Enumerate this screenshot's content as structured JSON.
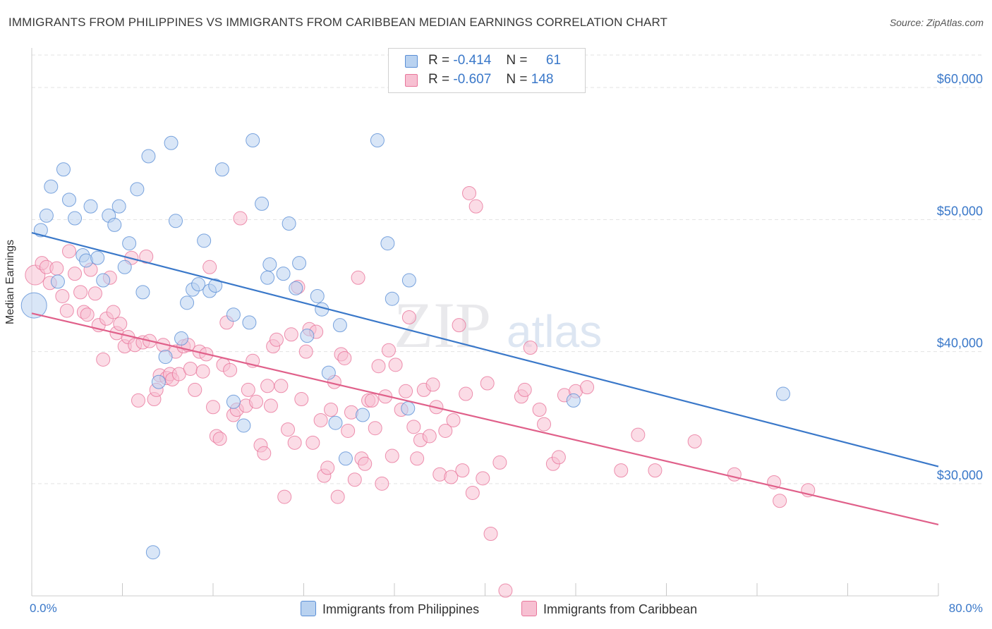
{
  "title": "IMMIGRANTS FROM PHILIPPINES VS IMMIGRANTS FROM CARIBBEAN MEDIAN EARNINGS CORRELATION CHART",
  "source": "Source: ZipAtlas.com",
  "watermark": "ZIPatlas",
  "legend": {
    "rows": [
      {
        "r_label": "R =",
        "r_value": "-0.414",
        "n_label": "N =",
        "n_value": "61"
      },
      {
        "r_label": "R =",
        "r_value": "-0.607",
        "n_label": "N =",
        "n_value": "148"
      }
    ]
  },
  "bottom_legend": [
    "Immigrants from Philippines",
    "Immigrants from Caribbean"
  ],
  "x_tick_labels": {
    "left": "0.0%",
    "right": "80.0%"
  },
  "chart_data": {
    "type": "scatter",
    "title": "IMMIGRANTS FROM PHILIPPINES VS IMMIGRANTS FROM CARIBBEAN MEDIAN EARNINGS CORRELATION CHART",
    "xlabel": "",
    "ylabel": "Median Earnings",
    "xlim": [
      0,
      80
    ],
    "ylim": [
      21500,
      63000
    ],
    "y_ticks": [
      30000,
      40000,
      50000,
      60000
    ],
    "y_tick_labels": [
      "$30,000",
      "$40,000",
      "$50,000",
      "$60,000"
    ],
    "grid": true,
    "legend_position": "top-center",
    "colors": {
      "philippines": "#5b8fd6",
      "caribbean": "#e8769b",
      "philippines_fill": "#b9d2f0",
      "caribbean_fill": "#f7c0d2",
      "axis_text": "#3a78c9"
    },
    "series": [
      {
        "name": "Immigrants from Philippines",
        "color": "#3a78c9",
        "trend": {
          "x": [
            0,
            80
          ],
          "y": [
            49000,
            31300
          ]
        },
        "points": [
          [
            0.2,
            43500
          ],
          [
            0.8,
            49200
          ],
          [
            1.3,
            50300
          ],
          [
            1.7,
            52500
          ],
          [
            2.3,
            45300
          ],
          [
            2.8,
            53800
          ],
          [
            3.3,
            51500
          ],
          [
            3.8,
            50100
          ],
          [
            4.5,
            47300
          ],
          [
            4.8,
            46900
          ],
          [
            5.2,
            51000
          ],
          [
            5.8,
            47100
          ],
          [
            6.3,
            45400
          ],
          [
            6.8,
            50300
          ],
          [
            7.3,
            49600
          ],
          [
            7.7,
            51000
          ],
          [
            8.2,
            46400
          ],
          [
            8.6,
            48200
          ],
          [
            9.3,
            52300
          ],
          [
            9.8,
            44500
          ],
          [
            10.3,
            54800
          ],
          [
            10.7,
            24800
          ],
          [
            11.2,
            37700
          ],
          [
            11.8,
            39600
          ],
          [
            12.3,
            55800
          ],
          [
            12.7,
            49900
          ],
          [
            13.2,
            41000
          ],
          [
            13.7,
            43700
          ],
          [
            14.2,
            44700
          ],
          [
            14.7,
            45100
          ],
          [
            15.2,
            48400
          ],
          [
            15.7,
            44600
          ],
          [
            16.2,
            45000
          ],
          [
            16.8,
            53800
          ],
          [
            17.8,
            42800
          ],
          [
            17.8,
            36200
          ],
          [
            18.7,
            34400
          ],
          [
            19.2,
            42200
          ],
          [
            19.5,
            56000
          ],
          [
            20.3,
            51200
          ],
          [
            20.8,
            45600
          ],
          [
            21.0,
            46600
          ],
          [
            22.2,
            45900
          ],
          [
            22.7,
            49700
          ],
          [
            23.3,
            44800
          ],
          [
            23.6,
            46700
          ],
          [
            24.3,
            41200
          ],
          [
            25.2,
            44200
          ],
          [
            25.6,
            43200
          ],
          [
            26.2,
            38400
          ],
          [
            26.8,
            34600
          ],
          [
            27.2,
            42000
          ],
          [
            27.7,
            31900
          ],
          [
            29.2,
            35200
          ],
          [
            30.5,
            56000
          ],
          [
            31.4,
            48200
          ],
          [
            31.8,
            44000
          ],
          [
            33.3,
            45400
          ],
          [
            33.2,
            35700
          ],
          [
            47.8,
            36300
          ],
          [
            66.3,
            36800
          ]
        ]
      },
      {
        "name": "Immigrants from Caribbean",
        "color": "#e0608a",
        "trend": {
          "x": [
            0,
            80
          ],
          "y": [
            42900,
            26900
          ]
        },
        "points": [
          [
            0.3,
            45800
          ],
          [
            0.9,
            46700
          ],
          [
            1.3,
            46400
          ],
          [
            1.6,
            45200
          ],
          [
            2.2,
            46300
          ],
          [
            2.7,
            44200
          ],
          [
            3.1,
            43100
          ],
          [
            3.3,
            47600
          ],
          [
            3.8,
            45900
          ],
          [
            4.3,
            44500
          ],
          [
            4.6,
            43000
          ],
          [
            4.9,
            42800
          ],
          [
            5.2,
            46200
          ],
          [
            5.6,
            44400
          ],
          [
            5.9,
            42000
          ],
          [
            6.3,
            39400
          ],
          [
            6.6,
            42500
          ],
          [
            6.9,
            45600
          ],
          [
            7.2,
            43000
          ],
          [
            7.5,
            41400
          ],
          [
            7.8,
            42100
          ],
          [
            8.2,
            40400
          ],
          [
            8.5,
            41100
          ],
          [
            8.8,
            47100
          ],
          [
            9.1,
            40500
          ],
          [
            9.4,
            36300
          ],
          [
            9.8,
            40700
          ],
          [
            10.1,
            47200
          ],
          [
            10.4,
            40800
          ],
          [
            10.8,
            36400
          ],
          [
            11.0,
            37100
          ],
          [
            11.3,
            38200
          ],
          [
            11.6,
            40500
          ],
          [
            11.9,
            38000
          ],
          [
            12.2,
            38300
          ],
          [
            12.4,
            37900
          ],
          [
            12.7,
            40000
          ],
          [
            13.0,
            38300
          ],
          [
            13.4,
            40400
          ],
          [
            13.8,
            40500
          ],
          [
            14.0,
            38700
          ],
          [
            14.4,
            37100
          ],
          [
            14.8,
            40000
          ],
          [
            15.1,
            38500
          ],
          [
            15.4,
            39800
          ],
          [
            15.7,
            46400
          ],
          [
            16.0,
            35800
          ],
          [
            16.3,
            33600
          ],
          [
            16.6,
            33400
          ],
          [
            16.9,
            39000
          ],
          [
            17.2,
            42200
          ],
          [
            17.5,
            38600
          ],
          [
            17.8,
            35200
          ],
          [
            18.1,
            35600
          ],
          [
            18.4,
            50100
          ],
          [
            18.9,
            35900
          ],
          [
            19.1,
            37100
          ],
          [
            19.5,
            39300
          ],
          [
            19.8,
            36200
          ],
          [
            20.2,
            32900
          ],
          [
            20.5,
            32300
          ],
          [
            20.8,
            37400
          ],
          [
            21.1,
            35900
          ],
          [
            21.3,
            40400
          ],
          [
            21.6,
            40900
          ],
          [
            22.0,
            37400
          ],
          [
            22.3,
            29000
          ],
          [
            22.6,
            34100
          ],
          [
            22.9,
            41300
          ],
          [
            23.2,
            33100
          ],
          [
            23.5,
            44900
          ],
          [
            23.8,
            36400
          ],
          [
            24.2,
            40000
          ],
          [
            24.5,
            41700
          ],
          [
            24.8,
            33100
          ],
          [
            25.1,
            41500
          ],
          [
            25.5,
            34800
          ],
          [
            25.8,
            30600
          ],
          [
            26.1,
            31200
          ],
          [
            26.4,
            35600
          ],
          [
            26.7,
            37700
          ],
          [
            27.0,
            29000
          ],
          [
            27.3,
            39800
          ],
          [
            27.6,
            39500
          ],
          [
            27.9,
            34000
          ],
          [
            28.2,
            35400
          ],
          [
            28.5,
            30300
          ],
          [
            28.8,
            45600
          ],
          [
            29.1,
            31900
          ],
          [
            29.4,
            31500
          ],
          [
            29.7,
            36300
          ],
          [
            30.0,
            36300
          ],
          [
            30.3,
            34200
          ],
          [
            30.6,
            38900
          ],
          [
            30.9,
            30000
          ],
          [
            31.2,
            36600
          ],
          [
            31.5,
            40100
          ],
          [
            31.8,
            32100
          ],
          [
            32.1,
            39000
          ],
          [
            32.6,
            35600
          ],
          [
            33.0,
            37000
          ],
          [
            33.3,
            42600
          ],
          [
            33.7,
            34300
          ],
          [
            34.0,
            31900
          ],
          [
            34.3,
            33300
          ],
          [
            34.6,
            37100
          ],
          [
            35.1,
            33600
          ],
          [
            35.4,
            37500
          ],
          [
            35.7,
            35800
          ],
          [
            36.0,
            30700
          ],
          [
            36.5,
            34000
          ],
          [
            37.0,
            30500
          ],
          [
            37.2,
            34800
          ],
          [
            37.7,
            42000
          ],
          [
            38.0,
            31000
          ],
          [
            38.3,
            36800
          ],
          [
            38.6,
            52000
          ],
          [
            38.9,
            29300
          ],
          [
            39.2,
            51000
          ],
          [
            39.8,
            30400
          ],
          [
            40.2,
            37600
          ],
          [
            40.5,
            26200
          ],
          [
            41.3,
            31600
          ],
          [
            41.8,
            21900
          ],
          [
            43.2,
            36600
          ],
          [
            43.5,
            37100
          ],
          [
            44.0,
            40300
          ],
          [
            44.8,
            35600
          ],
          [
            45.2,
            34500
          ],
          [
            46.0,
            31500
          ],
          [
            46.5,
            32000
          ],
          [
            47.0,
            36700
          ],
          [
            48.0,
            37000
          ],
          [
            49.0,
            37300
          ],
          [
            52.0,
            31000
          ],
          [
            53.5,
            33700
          ],
          [
            55.0,
            31000
          ],
          [
            58.5,
            33200
          ],
          [
            62.0,
            30700
          ],
          [
            65.5,
            30100
          ],
          [
            66.0,
            28700
          ],
          [
            68.5,
            29500
          ]
        ]
      }
    ]
  }
}
